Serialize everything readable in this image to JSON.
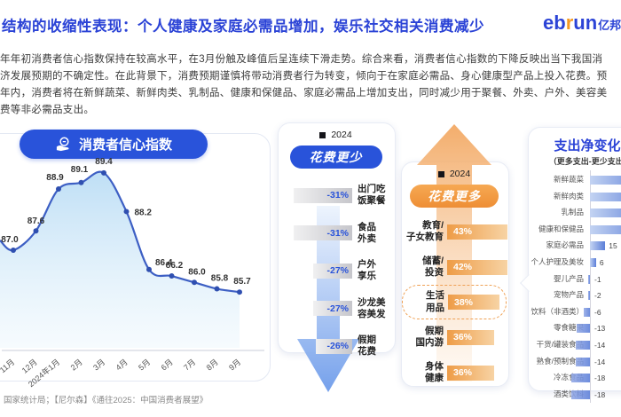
{
  "header": {
    "title": "结构的收缩性表现：个人健康及家庭必需品增加，娱乐社交相关消费减少",
    "logo_eb": "eb",
    "logo_r": "r",
    "logo_un": "un",
    "logo_cn": "亿邦"
  },
  "intro_lines": [
    "年年初消费者信心指数保持在较高水平，在3月份触及峰值后呈连续下滑走势。综合来看，消费者信心指数的下降反映出当下我国消",
    "济发展预期的不确定性。在此背景下，消费预期谨慎将带动消费者行为转变，倾向于在家庭必需品、身心健康型产品上投入花费。预",
    "年内，消费者将在新鲜蔬菜、新鲜肉类、乳制品、健康和保健品、家庭必需品上增加支出，同时减少用于聚餐、外卖、户外、美容美",
    "费等非必需品支出。"
  ],
  "source_note": "国家统计局；【尼尔森】《通往2025：中国消费者展望》",
  "colors": {
    "accent_blue": "#2B43D6",
    "pill_blue": "#2953DA",
    "orange": "#F0953F",
    "bar_blue": "#5B7ED8",
    "gray_bar": "#C6C6CB"
  },
  "chart_data": [
    {
      "type": "line",
      "title": "消费者信心指数",
      "x": [
        "11月",
        "12月",
        "2024年1月",
        "2月",
        "3月",
        "4月",
        "5月",
        "6月",
        "7月",
        "8月",
        "9月"
      ],
      "values": [
        87.0,
        87.6,
        88.9,
        89.1,
        89.4,
        88.2,
        86.4,
        86.2,
        86.0,
        85.8,
        85.7
      ],
      "ylim": [
        85.5,
        89.6
      ],
      "grid": false,
      "legend_position": "none"
    },
    {
      "type": "bar",
      "title": "花费更少",
      "legend": "2024",
      "categories_lines": [
        [
          "出门吃",
          "饭聚餐"
        ],
        [
          "食品",
          "外卖"
        ],
        [
          "户外",
          "享乐"
        ],
        [
          "沙龙美",
          "容美发"
        ],
        [
          "假期",
          "花费"
        ]
      ],
      "categories": [
        "出门吃饭聚餐",
        "食品外卖",
        "户外享乐",
        "沙龙美容美发",
        "假期花费"
      ],
      "values": [
        -31,
        -31,
        -27,
        -27,
        -26
      ],
      "values_display": [
        "-31%",
        "-31%",
        "-27%",
        "-27%",
        "-26%"
      ]
    },
    {
      "type": "bar",
      "title": "花费更多",
      "legend": "2024",
      "categories_lines": [
        [
          "教育/",
          "子女教育"
        ],
        [
          "储蓄/",
          "投资"
        ],
        [
          "生活",
          "用品"
        ],
        [
          "假期",
          "国内游"
        ],
        [
          "身体",
          "健康"
        ]
      ],
      "categories": [
        "教育/子女教育",
        "储蓄/投资",
        "生活用品",
        "假期国内游",
        "身体健康"
      ],
      "values": [
        43,
        42,
        38,
        36,
        36
      ],
      "values_display": [
        "43%",
        "42%",
        "38%",
        "36%",
        "36%"
      ],
      "highlight_index": 2
    },
    {
      "type": "bar",
      "title": "支出净变化",
      "subtitle": "（更多支出-更少支出/",
      "categories": [
        "新鲜蔬菜",
        "新鲜肉类",
        "乳制品",
        "健康和保健品",
        "家庭必需品",
        "个人护理及美妆",
        "婴儿产品",
        "宠物产品",
        "饮料（非酒类）",
        "零食糖果",
        "干货/罐装食品",
        "熟食/预制食品",
        "冷冻食品",
        "酒类饮料"
      ],
      "values": [
        null,
        null,
        null,
        null,
        15,
        6,
        -1,
        -2,
        -6,
        -13,
        -14,
        -14,
        -18,
        -18
      ],
      "values_display": [
        "",
        "",
        "",
        "",
        "15",
        "6",
        "-1",
        "-2",
        "-6",
        "-13",
        "-14",
        "-14",
        "-18",
        "-18"
      ]
    }
  ]
}
